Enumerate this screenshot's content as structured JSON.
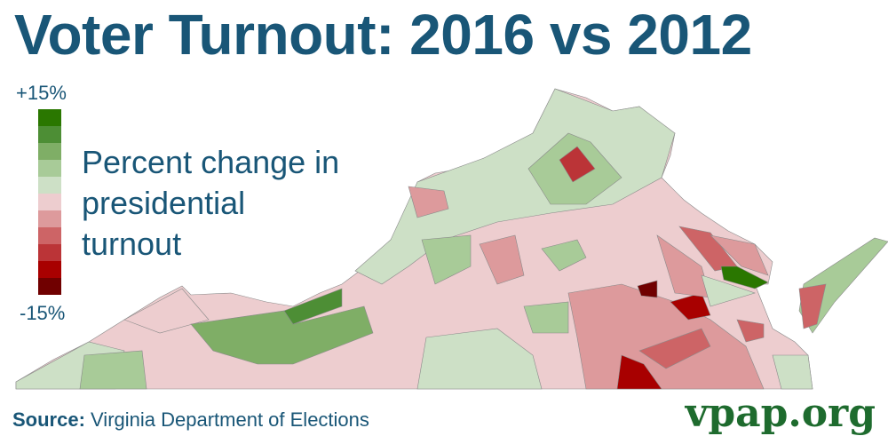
{
  "title": "Voter Turnout: 2016 vs 2012",
  "legend": {
    "max_label": "+15%",
    "min_label": "-15%",
    "title_lines": [
      "Percent change in",
      "presidential",
      "turnout"
    ],
    "colors": [
      "#2a7700",
      "#4d8e35",
      "#7fae66",
      "#a8cb98",
      "#cde0c6",
      "#edcdcf",
      "#dd9a9c",
      "#cd6466",
      "#bb3437",
      "#a80000",
      "#700000"
    ]
  },
  "source": {
    "label": "Source:",
    "text": " Virginia Department of Elections"
  },
  "brand": "vpap.org"
}
